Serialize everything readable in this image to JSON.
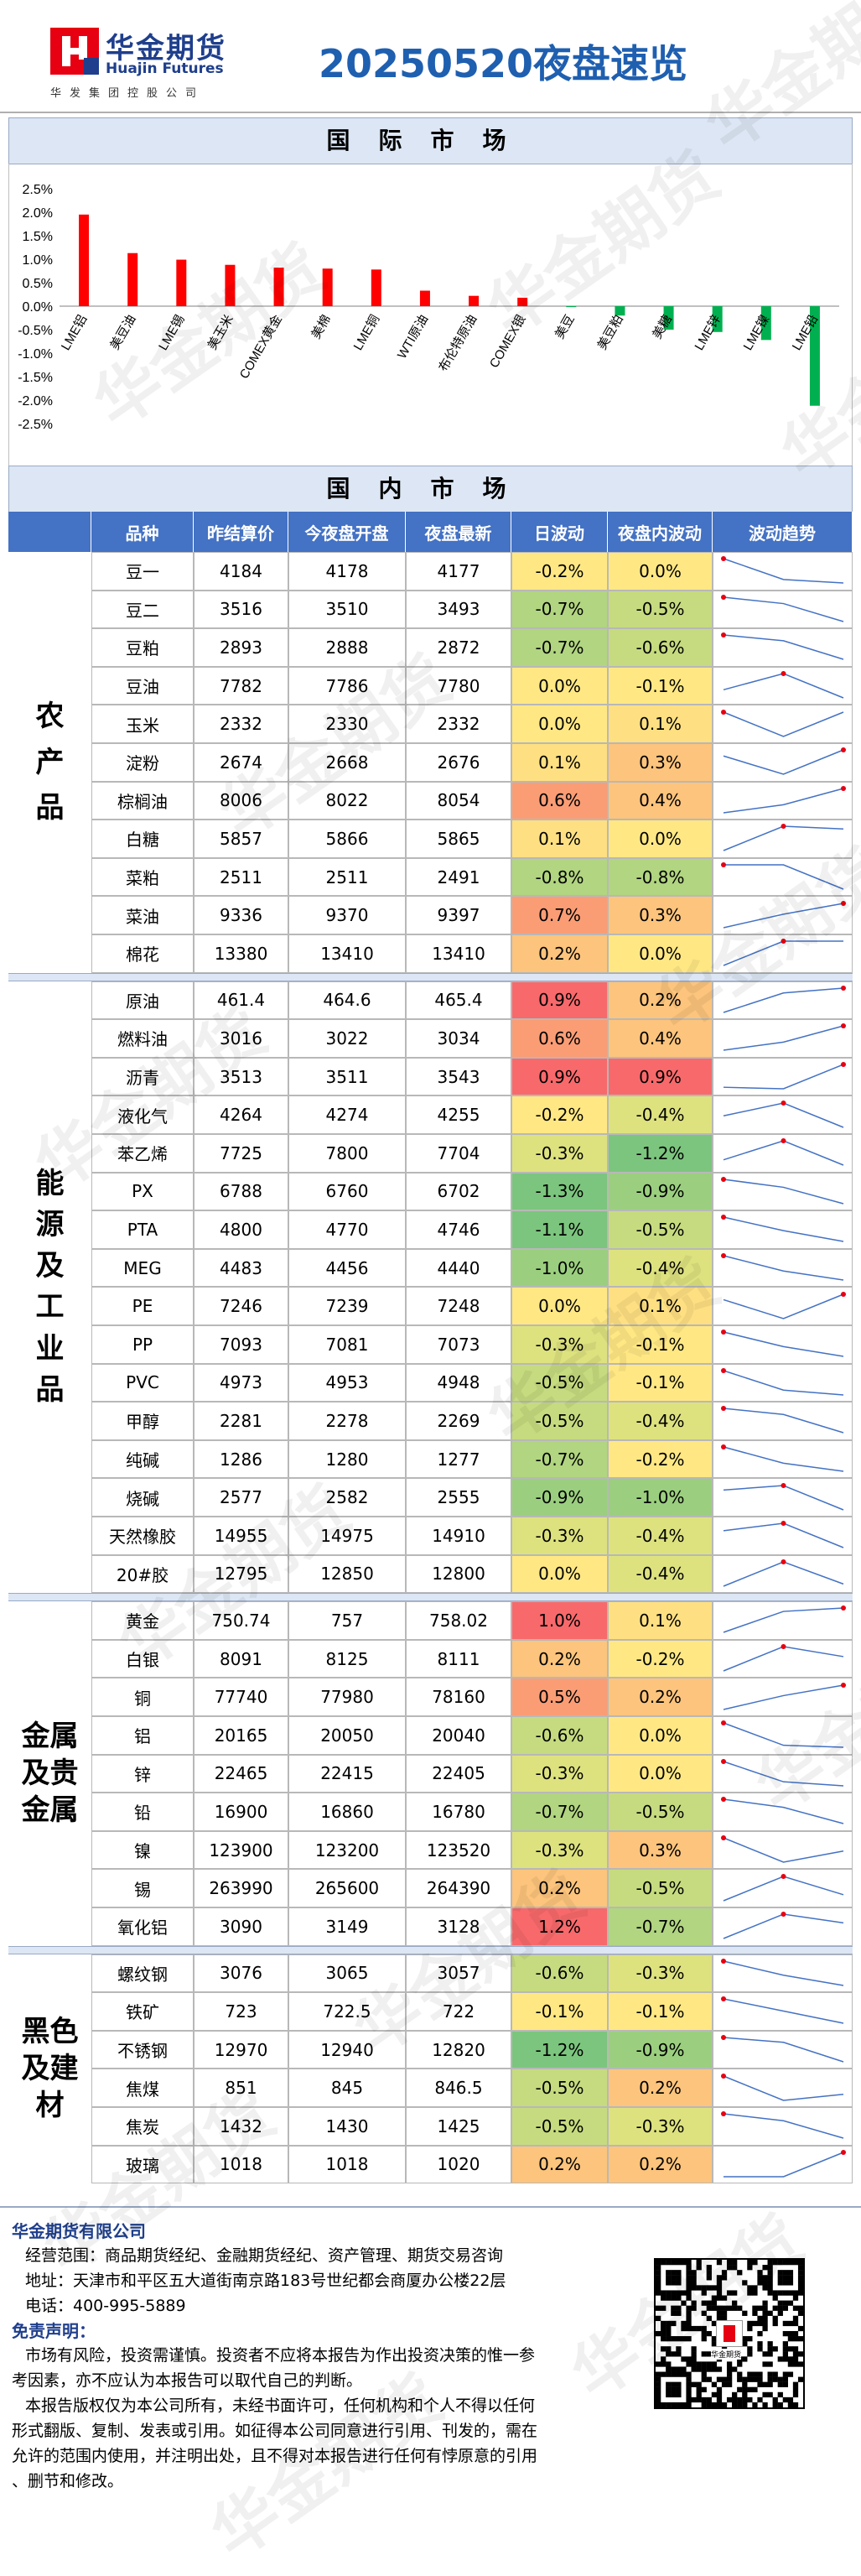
{
  "header": {
    "logo_cn": "华金期货",
    "logo_en": "Huajin Futures",
    "logo_sub": "华发集团控股公司",
    "title": "20250520夜盘速览"
  },
  "sections": {
    "international": "国际市场",
    "domestic": "国内市场"
  },
  "watermark": "华金期货",
  "chart_data": {
    "type": "bar",
    "title": "",
    "categories": [
      "LME铝",
      "美豆油",
      "LME锡",
      "美玉米",
      "COMEX黄金",
      "美棉",
      "LME铜",
      "WTI原油",
      "布伦特原油",
      "COMEX银",
      "美豆",
      "美豆粕",
      "美糖",
      "LME锌",
      "LME镍",
      "LME铅"
    ],
    "values": [
      1.95,
      1.13,
      0.99,
      0.88,
      0.82,
      0.8,
      0.78,
      0.33,
      0.22,
      0.18,
      -0.02,
      -0.2,
      -0.5,
      -0.55,
      -0.72,
      -2.12
    ],
    "yticks": [
      "2.5%",
      "2.0%",
      "1.5%",
      "1.0%",
      "0.5%",
      "0.0%",
      "-0.5%",
      "-1.0%",
      "-1.5%",
      "-2.0%",
      "-2.5%"
    ],
    "ylim": [
      -2.5,
      2.5
    ],
    "pos_color": "#ff0000",
    "neg_color": "#00b050"
  },
  "table": {
    "columns": [
      "品种",
      "昨结算价",
      "今夜盘开盘",
      "夜盘最新",
      "日波动",
      "夜盘内波动",
      "波动趋势"
    ],
    "groups": [
      {
        "label": "农产品",
        "rows": [
          {
            "name": "豆一",
            "settle": "4184",
            "open": "4178",
            "latest": "4177",
            "day": "-0.2%",
            "night": "0.0%"
          },
          {
            "name": "豆二",
            "settle": "3516",
            "open": "3510",
            "latest": "3493",
            "day": "-0.7%",
            "night": "-0.5%"
          },
          {
            "name": "豆粕",
            "settle": "2893",
            "open": "2888",
            "latest": "2872",
            "day": "-0.7%",
            "night": "-0.6%"
          },
          {
            "name": "豆油",
            "settle": "7782",
            "open": "7786",
            "latest": "7780",
            "day": "0.0%",
            "night": "-0.1%"
          },
          {
            "name": "玉米",
            "settle": "2332",
            "open": "2330",
            "latest": "2332",
            "day": "0.0%",
            "night": "0.1%"
          },
          {
            "name": "淀粉",
            "settle": "2674",
            "open": "2668",
            "latest": "2676",
            "day": "0.1%",
            "night": "0.3%"
          },
          {
            "name": "棕榈油",
            "settle": "8006",
            "open": "8022",
            "latest": "8054",
            "day": "0.6%",
            "night": "0.4%"
          },
          {
            "name": "白糖",
            "settle": "5857",
            "open": "5866",
            "latest": "5865",
            "day": "0.1%",
            "night": "0.0%"
          },
          {
            "name": "菜粕",
            "settle": "2511",
            "open": "2511",
            "latest": "2491",
            "day": "-0.8%",
            "night": "-0.8%"
          },
          {
            "name": "菜油",
            "settle": "9336",
            "open": "9370",
            "latest": "9397",
            "day": "0.7%",
            "night": "0.3%"
          },
          {
            "name": "棉花",
            "settle": "13380",
            "open": "13410",
            "latest": "13410",
            "day": "0.2%",
            "night": "0.0%"
          }
        ]
      },
      {
        "label": "能源及工业品",
        "rows": [
          {
            "name": "原油",
            "settle": "461.4",
            "open": "464.6",
            "latest": "465.4",
            "day": "0.9%",
            "night": "0.2%"
          },
          {
            "name": "燃料油",
            "settle": "3016",
            "open": "3022",
            "latest": "3034",
            "day": "0.6%",
            "night": "0.4%"
          },
          {
            "name": "沥青",
            "settle": "3513",
            "open": "3511",
            "latest": "3543",
            "day": "0.9%",
            "night": "0.9%"
          },
          {
            "name": "液化气",
            "settle": "4264",
            "open": "4274",
            "latest": "4255",
            "day": "-0.2%",
            "night": "-0.4%"
          },
          {
            "name": "苯乙烯",
            "settle": "7725",
            "open": "7800",
            "latest": "7704",
            "day": "-0.3%",
            "night": "-1.2%"
          },
          {
            "name": "PX",
            "settle": "6788",
            "open": "6760",
            "latest": "6702",
            "day": "-1.3%",
            "night": "-0.9%"
          },
          {
            "name": "PTA",
            "settle": "4800",
            "open": "4770",
            "latest": "4746",
            "day": "-1.1%",
            "night": "-0.5%"
          },
          {
            "name": "MEG",
            "settle": "4483",
            "open": "4456",
            "latest": "4440",
            "day": "-1.0%",
            "night": "-0.4%"
          },
          {
            "name": "PE",
            "settle": "7246",
            "open": "7239",
            "latest": "7248",
            "day": "0.0%",
            "night": "0.1%"
          },
          {
            "name": "PP",
            "settle": "7093",
            "open": "7081",
            "latest": "7073",
            "day": "-0.3%",
            "night": "-0.1%"
          },
          {
            "name": "PVC",
            "settle": "4973",
            "open": "4953",
            "latest": "4948",
            "day": "-0.5%",
            "night": "-0.1%"
          },
          {
            "name": "甲醇",
            "settle": "2281",
            "open": "2278",
            "latest": "2269",
            "day": "-0.5%",
            "night": "-0.4%"
          },
          {
            "name": "纯碱",
            "settle": "1286",
            "open": "1280",
            "latest": "1277",
            "day": "-0.7%",
            "night": "-0.2%"
          },
          {
            "name": "烧碱",
            "settle": "2577",
            "open": "2582",
            "latest": "2555",
            "day": "-0.9%",
            "night": "-1.0%"
          },
          {
            "name": "天然橡胶",
            "settle": "14955",
            "open": "14975",
            "latest": "14910",
            "day": "-0.3%",
            "night": "-0.4%"
          },
          {
            "name": "20#胶",
            "settle": "12795",
            "open": "12850",
            "latest": "12800",
            "day": "0.0%",
            "night": "-0.4%"
          }
        ]
      },
      {
        "label": "金属及贵金属",
        "rows": [
          {
            "name": "黄金",
            "settle": "750.74",
            "open": "757",
            "latest": "758.02",
            "day": "1.0%",
            "night": "0.1%"
          },
          {
            "name": "白银",
            "settle": "8091",
            "open": "8125",
            "latest": "8111",
            "day": "0.2%",
            "night": "-0.2%"
          },
          {
            "name": "铜",
            "settle": "77740",
            "open": "77980",
            "latest": "78160",
            "day": "0.5%",
            "night": "0.2%"
          },
          {
            "name": "铝",
            "settle": "20165",
            "open": "20050",
            "latest": "20040",
            "day": "-0.6%",
            "night": "0.0%"
          },
          {
            "name": "锌",
            "settle": "22465",
            "open": "22415",
            "latest": "22405",
            "day": "-0.3%",
            "night": "0.0%"
          },
          {
            "name": "铅",
            "settle": "16900",
            "open": "16860",
            "latest": "16780",
            "day": "-0.7%",
            "night": "-0.5%"
          },
          {
            "name": "镍",
            "settle": "123900",
            "open": "123200",
            "latest": "123520",
            "day": "-0.3%",
            "night": "0.3%"
          },
          {
            "name": "锡",
            "settle": "263990",
            "open": "265600",
            "latest": "264390",
            "day": "0.2%",
            "night": "-0.5%"
          },
          {
            "name": "氧化铝",
            "settle": "3090",
            "open": "3149",
            "latest": "3128",
            "day": "1.2%",
            "night": "-0.7%"
          }
        ]
      },
      {
        "label": "黑色及建材",
        "rows": [
          {
            "name": "螺纹钢",
            "settle": "3076",
            "open": "3065",
            "latest": "3057",
            "day": "-0.6%",
            "night": "-0.3%"
          },
          {
            "name": "铁矿",
            "settle": "723",
            "open": "722.5",
            "latest": "722",
            "day": "-0.1%",
            "night": "-0.1%"
          },
          {
            "name": "不锈钢",
            "settle": "12970",
            "open": "12940",
            "latest": "12820",
            "day": "-1.2%",
            "night": "-0.9%"
          },
          {
            "name": "焦煤",
            "settle": "851",
            "open": "845",
            "latest": "846.5",
            "day": "-0.5%",
            "night": "0.2%"
          },
          {
            "name": "焦炭",
            "settle": "1432",
            "open": "1430",
            "latest": "1425",
            "day": "-0.5%",
            "night": "-0.3%"
          },
          {
            "name": "玻璃",
            "settle": "1018",
            "open": "1018",
            "latest": "1020",
            "day": "0.2%",
            "night": "0.2%"
          }
        ]
      }
    ]
  },
  "footer": {
    "company": "华金期货有限公司",
    "scope": "经营范围：商品期货经纪、金融期货经纪、资产管理、期货交易咨询",
    "address": "地址：天津市和平区五大道街南京路183号世纪都会商厦办公楼22层",
    "phone": "电话：400-995-5889",
    "disclaimer_title": "免责声明：",
    "disclaimer_1a": "市场有风险，投资需谨慎。投资者不应将本报告为作出投资决策的惟一参",
    "disclaimer_1b": "考因素，亦不应认为本报告可以取代自己的判断。",
    "disclaimer_2a": "本报告版权仅为本公司所有，未经书面许可，任何机构和个人不得以任何",
    "disclaimer_2b": "形式翻版、复制、发表或引用。如征得本公司同意进行引用、刊发的，需在",
    "disclaimer_2c": "允许的范围内使用，并注明出处，且不得对本报告进行任何有悖原意的引用",
    "disclaimer_2d": "、删节和修改。",
    "qr_label": "华金期货"
  }
}
